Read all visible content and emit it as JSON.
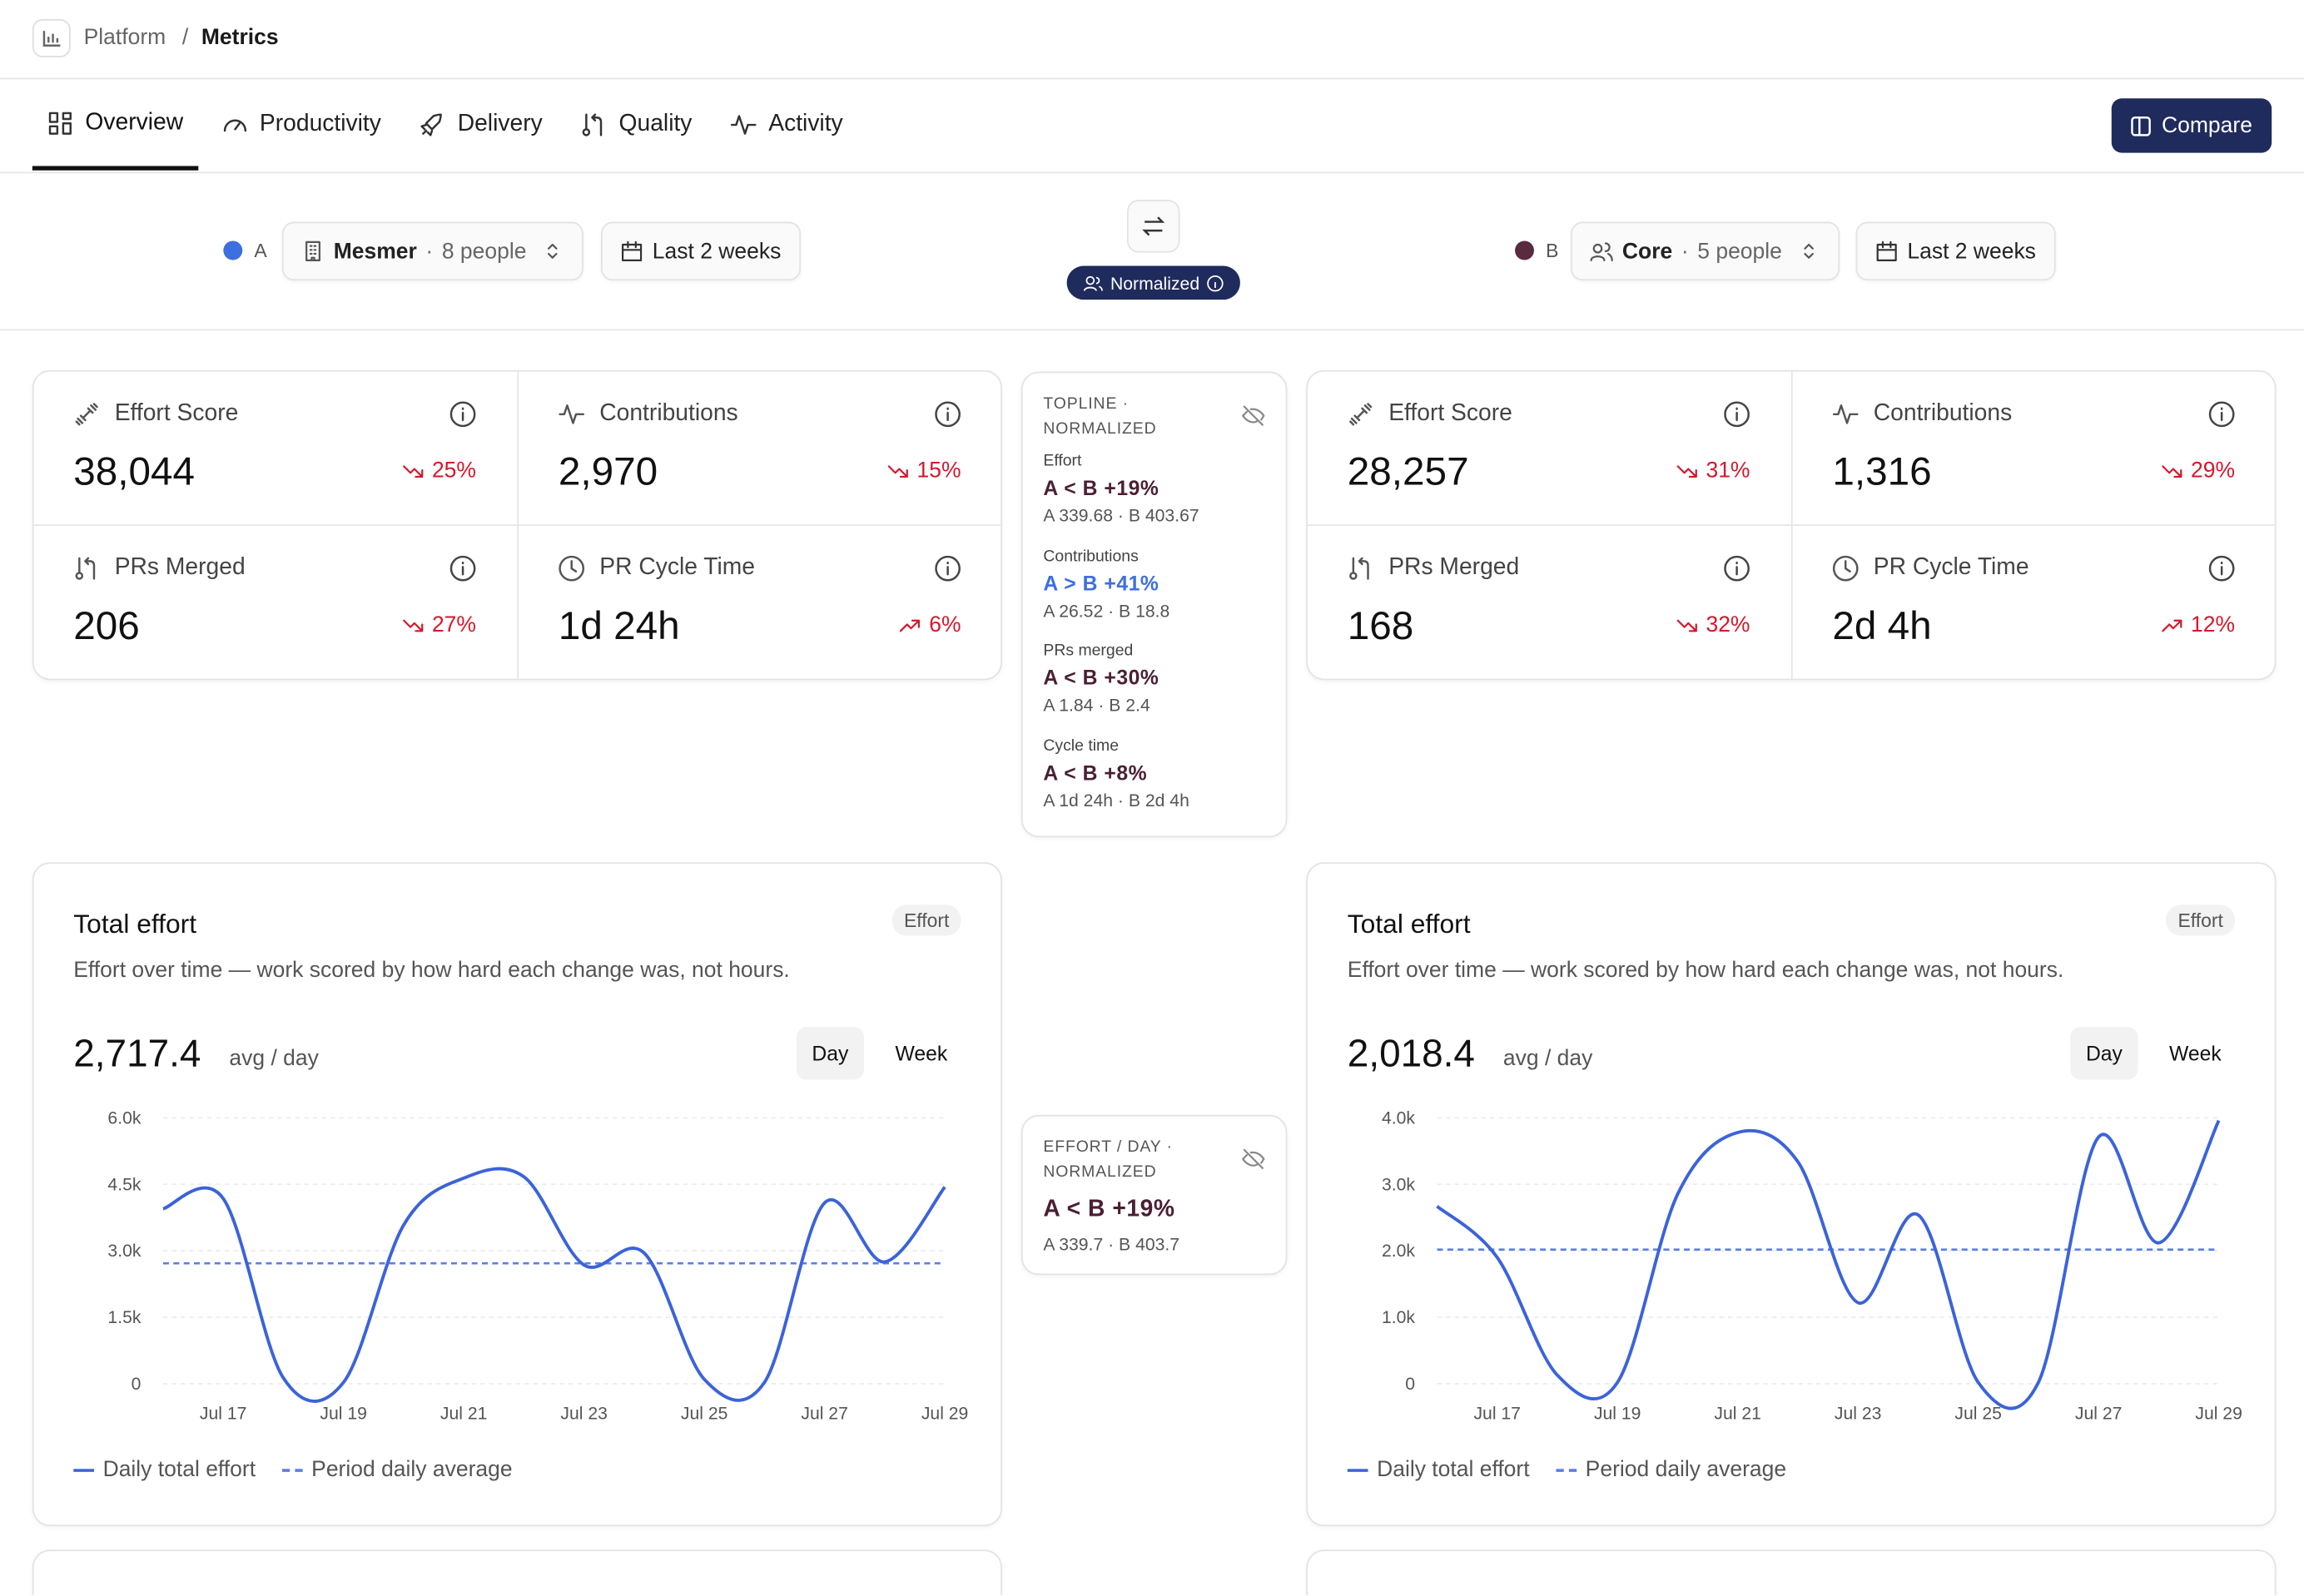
{
  "breadcrumb": {
    "root": "Platform",
    "separator": "/",
    "current": "Metrics"
  },
  "tabs": [
    "Overview",
    "Productivity",
    "Delivery",
    "Quality",
    "Activity"
  ],
  "compare": "Compare",
  "sides": [
    {
      "letter": "A",
      "color": "#3d6fe0",
      "team": "Mesmer",
      "dot": "·",
      "people": "8 people",
      "range": "Last 2 weeks"
    },
    {
      "letter": "B",
      "color": "#5a2a3f",
      "team": "Core",
      "dot": "·",
      "people": "5 people",
      "range": "Last 2 weeks"
    }
  ],
  "normalized": "Normalized",
  "kpis": [
    [
      {
        "name": "Effort Score",
        "value": "38,044",
        "delta": "25%",
        "direction": "down"
      },
      {
        "name": "Contributions",
        "value": "2,970",
        "delta": "15%",
        "direction": "down"
      },
      {
        "name": "PRs Merged",
        "value": "206",
        "delta": "27%",
        "direction": "down"
      },
      {
        "name": "PR Cycle Time",
        "value": "1d 24h",
        "delta": "6%",
        "direction": "up"
      }
    ],
    [
      {
        "name": "Effort Score",
        "value": "28,257",
        "delta": "31%",
        "direction": "down"
      },
      {
        "name": "Contributions",
        "value": "1,316",
        "delta": "29%",
        "direction": "down"
      },
      {
        "name": "PRs Merged",
        "value": "168",
        "delta": "32%",
        "direction": "down"
      },
      {
        "name": "PR Cycle Time",
        "value": "2d 4h",
        "delta": "12%",
        "direction": "up"
      }
    ]
  ],
  "topline": {
    "title": "TOPLINE · NORMALIZED",
    "items": [
      {
        "label": "Effort",
        "result": "A < B +19%",
        "detail": "A 339.68 · B 403.67",
        "color": "#4a1f33"
      },
      {
        "label": "Contributions",
        "result": "A > B +41%",
        "detail": "A 26.52 · B 18.8",
        "color": "#3d6fe0"
      },
      {
        "label": "PRs merged",
        "result": "A < B +30%",
        "detail": "A 1.84 · B 2.4",
        "color": "#4a1f33"
      },
      {
        "label": "Cycle time",
        "result": "A < B +8%",
        "detail": "A 1d 24h · B 2d 4h",
        "color": "#4a1f33"
      }
    ]
  },
  "effort_day": {
    "title": "EFFORT / DAY · NORMALIZED",
    "result": "A < B +19%",
    "detail": "A 339.7 · B 403.7",
    "color": "#4a1f33"
  },
  "panels": [
    {
      "title": "Total effort",
      "badge": "Effort",
      "description": "Effort over time — work scored by how hard each change was, not hours.",
      "avg": {
        "value": 2717.4,
        "label": "2,717.4"
      },
      "unit": "avg / day",
      "toggle": [
        "Day",
        "Week"
      ],
      "chart": {
        "type": "line",
        "categories": [
          null,
          "Jul 17",
          null,
          "Jul 19",
          null,
          "Jul 21",
          null,
          "Jul 23",
          null,
          "Jul 25",
          null,
          "Jul 27",
          null,
          "Jul 29"
        ],
        "series": [
          {
            "name": "Daily total effort",
            "color": "#3b63d9",
            "values": [
              3950,
              4180,
              130,
              30,
              3580,
              4640,
              4670,
              2680,
              2950,
              100,
              30,
              4080,
              2750,
              4440
            ]
          }
        ],
        "average_name": "Period daily average",
        "ylim": [
          0,
          6000
        ],
        "yticks": [
          0,
          {
            "value": 1500,
            "label": "1.5k"
          },
          {
            "value": 3000,
            "label": "3.0k"
          },
          {
            "value": 4500,
            "label": "4.5k"
          },
          {
            "value": 6000,
            "label": "6.0k"
          }
        ]
      }
    },
    {
      "title": "Total effort",
      "badge": "Effort",
      "description": "Effort over time — work scored by how hard each change was, not hours.",
      "avg": {
        "value": 2018.4,
        "label": "2,018.4"
      },
      "unit": "avg / day",
      "toggle": [
        "Day",
        "Week"
      ],
      "chart": {
        "type": "line",
        "categories": [
          null,
          "Jul 17",
          null,
          "Jul 19",
          null,
          "Jul 21",
          null,
          "Jul 23",
          null,
          "Jul 25",
          null,
          "Jul 27",
          null,
          "Jul 29"
        ],
        "series": [
          {
            "name": "Daily total effort",
            "color": "#3b63d9",
            "values": [
              2670,
              1900,
              130,
              20,
              2850,
              3780,
              3340,
              1220,
              2540,
              20,
              20,
              3710,
              2120,
              3960
            ]
          }
        ],
        "average_name": "Period daily average",
        "ylim": [
          0,
          4000
        ],
        "yticks": [
          0,
          {
            "value": 1000,
            "label": "1.0k"
          },
          {
            "value": 2000,
            "label": "2.0k"
          },
          {
            "value": 3000,
            "label": "3.0k"
          },
          {
            "value": 4000,
            "label": "4.0k"
          }
        ]
      }
    }
  ]
}
